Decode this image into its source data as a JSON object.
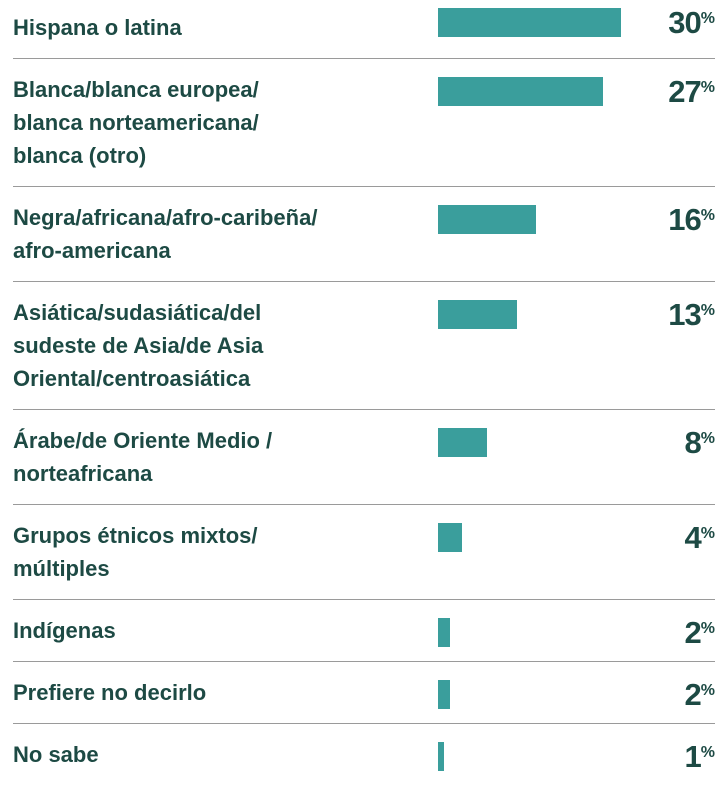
{
  "chart_data": {
    "type": "bar",
    "categories": [
      "Hispana o latina",
      "Blanca/blanca europea/\nblanca norteamericana/\nblanca (otro)",
      "Negra/africana/afro-caribeña/\nafro-americana",
      "Asiática/sudasiática/del\nsudeste de Asia/de Asia\nOriental/centroasiática",
      "Árabe/de Oriente Medio /\nnorteafricana",
      "Grupos étnicos mixtos/\nmúltiples",
      "Indígenas",
      "Prefiere no decirlo",
      "No sabe"
    ],
    "values": [
      30,
      27,
      16,
      13,
      8,
      4,
      2,
      2,
      1
    ],
    "value_labels": [
      "30%",
      "27%",
      "16%",
      "13%",
      "8%",
      "4%",
      "2%",
      "2%",
      "1%"
    ],
    "color": "#3a9e9c"
  }
}
